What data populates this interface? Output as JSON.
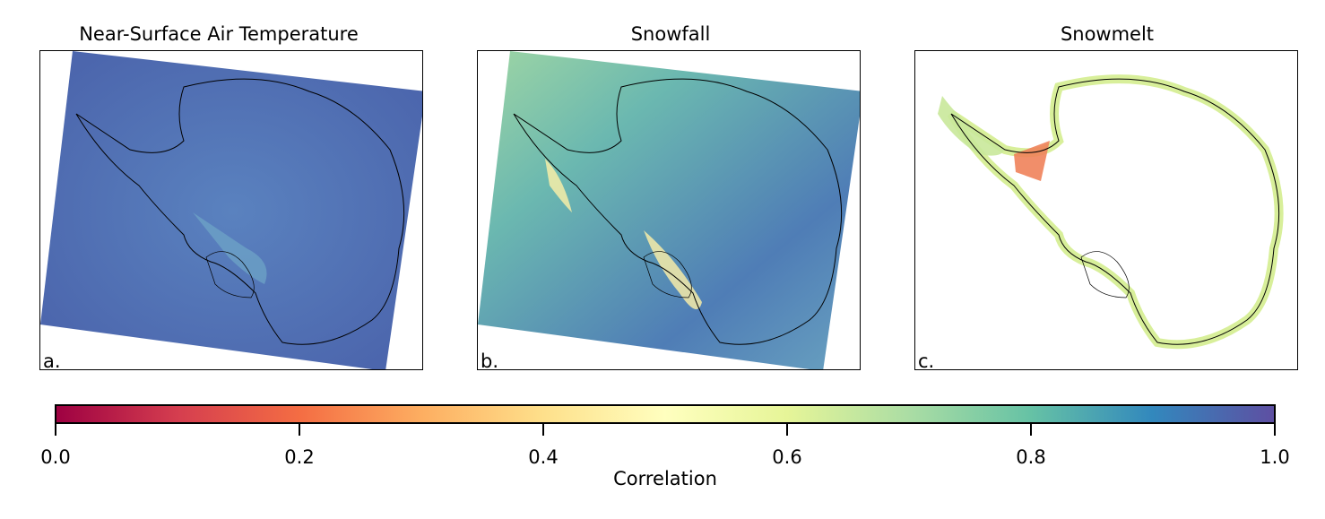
{
  "chart_data": {
    "type": "heatmap",
    "panels": [
      {
        "title": "Near-Surface Air Temperature",
        "letter": "a.",
        "dominant_correlation": 0.92,
        "dominant_color": "#4a6fb0",
        "highlight_color": "#7fcdaa",
        "coverage": "full-grid"
      },
      {
        "title": "Snowfall",
        "letter": "b.",
        "dominant_correlation": 0.75,
        "dominant_color": "#5f9fbc",
        "highlight_color": "#fff5b0",
        "coverage": "full-grid"
      },
      {
        "title": "Snowmelt",
        "letter": "c.",
        "dominant_correlation": 0.6,
        "dominant_color": "#d8ef9a",
        "highlight_color": "#f0825a",
        "coverage": "coastal-only"
      }
    ],
    "colorbar": {
      "label": "Correlation",
      "range": [
        0.0,
        1.0
      ],
      "ticks": [
        "0.0",
        "0.2",
        "0.4",
        "0.6",
        "0.8",
        "1.0"
      ],
      "colormap": "Spectral",
      "orientation": "horizontal"
    }
  }
}
